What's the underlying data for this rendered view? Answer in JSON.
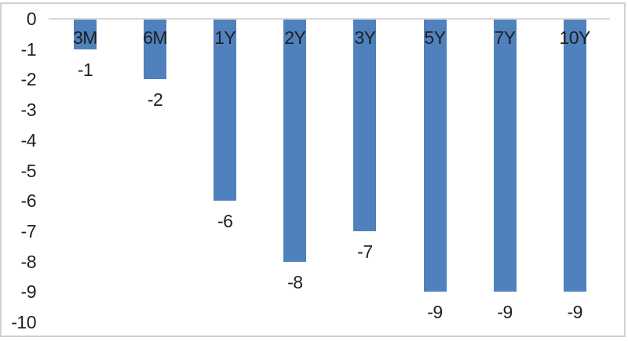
{
  "chart_data": {
    "type": "bar",
    "orientation": "vertical-negative",
    "title": "",
    "xlabel": "",
    "ylabel": "",
    "categories": [
      "3M",
      "6M",
      "1Y",
      "2Y",
      "3Y",
      "5Y",
      "7Y",
      "10Y"
    ],
    "values": [
      -1,
      -2,
      -6,
      -8,
      -7,
      -9,
      -9,
      -9
    ],
    "data_labels": [
      "-1",
      "-2",
      "-6",
      "-8",
      "-7",
      "-9",
      "-9",
      "-9"
    ],
    "y_ticks": [
      "0",
      "-1",
      "-2",
      "-3",
      "-4",
      "-5",
      "-6",
      "-7",
      "-8",
      "-9",
      "-10"
    ],
    "ylim": [
      -10,
      0
    ],
    "gridlines": false,
    "legend_position": "none",
    "colors": {
      "bar_fill": "#4f81bd",
      "axis_line": "#d9d9d9",
      "text": "#1f1f1f",
      "frame_border": "#d2d2d2",
      "background": "#ffffff"
    }
  }
}
